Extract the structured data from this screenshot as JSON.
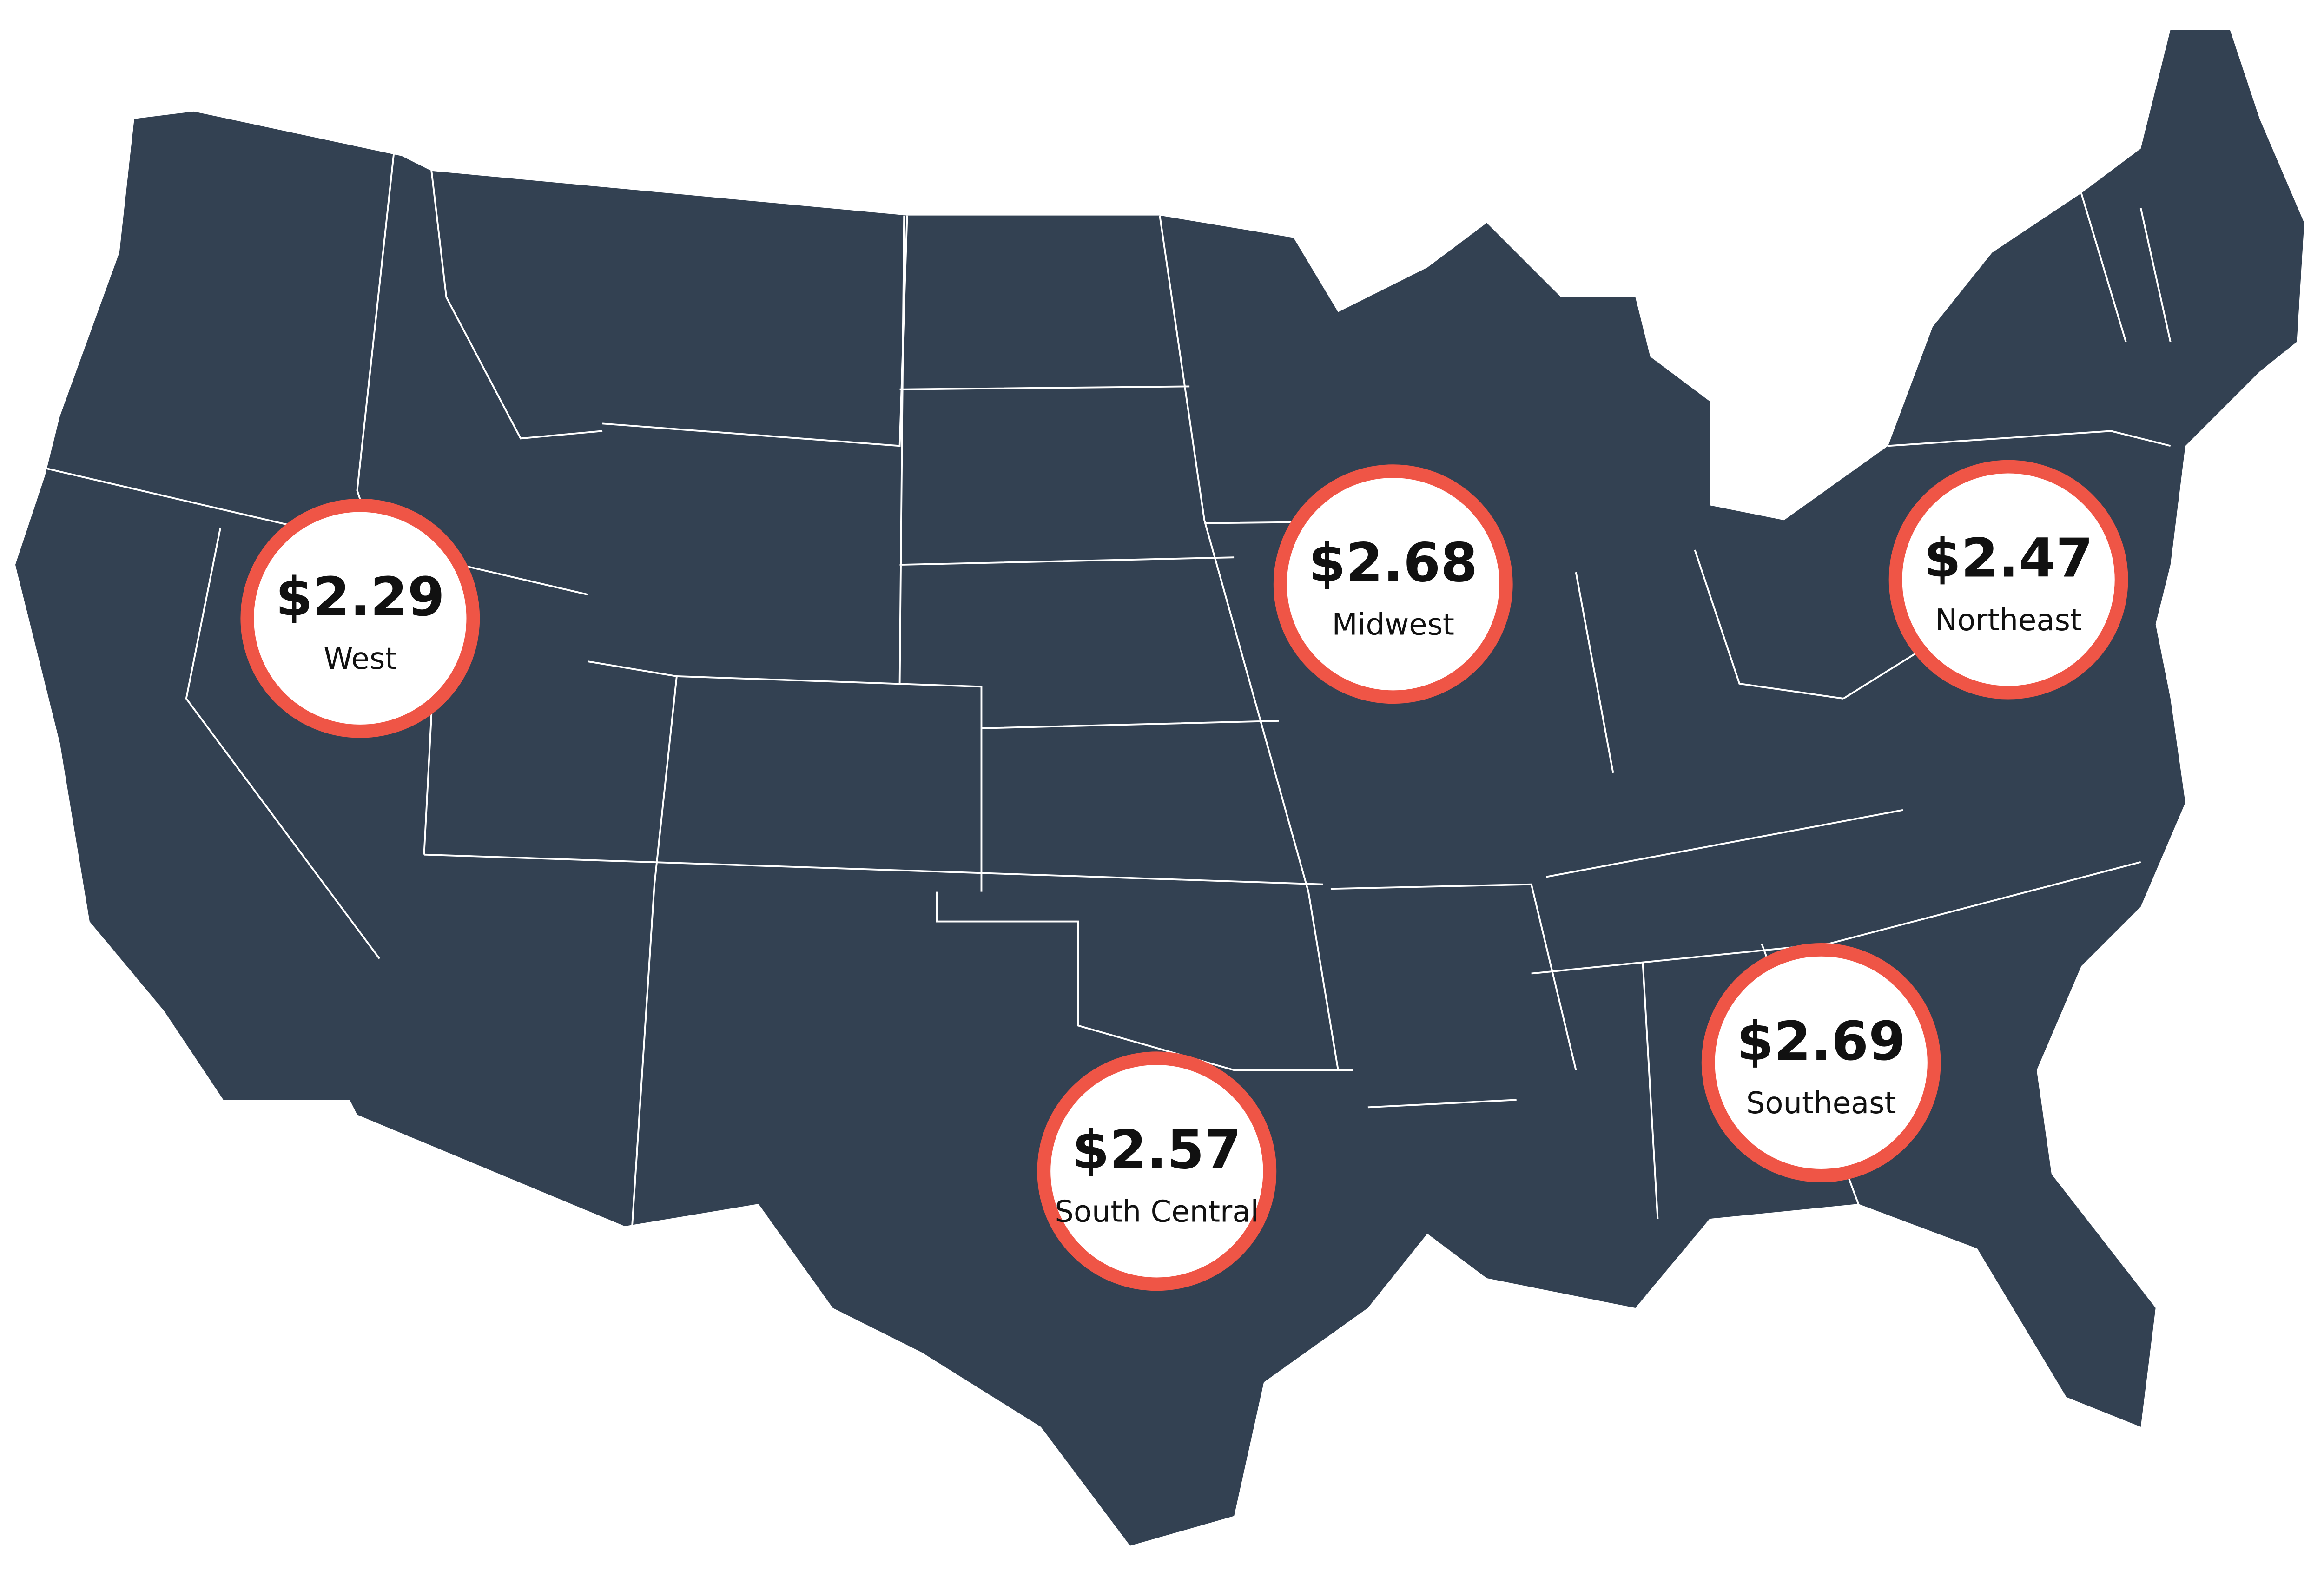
{
  "regions": [
    {
      "price": "$2.29",
      "name": "West"
    },
    {
      "price": "$2.68",
      "name": "Midwest"
    },
    {
      "price": "$2.47",
      "name": "Northeast"
    },
    {
      "price": "$2.57",
      "name": "South Central"
    },
    {
      "price": "$2.69",
      "name": "Southeast"
    }
  ]
}
